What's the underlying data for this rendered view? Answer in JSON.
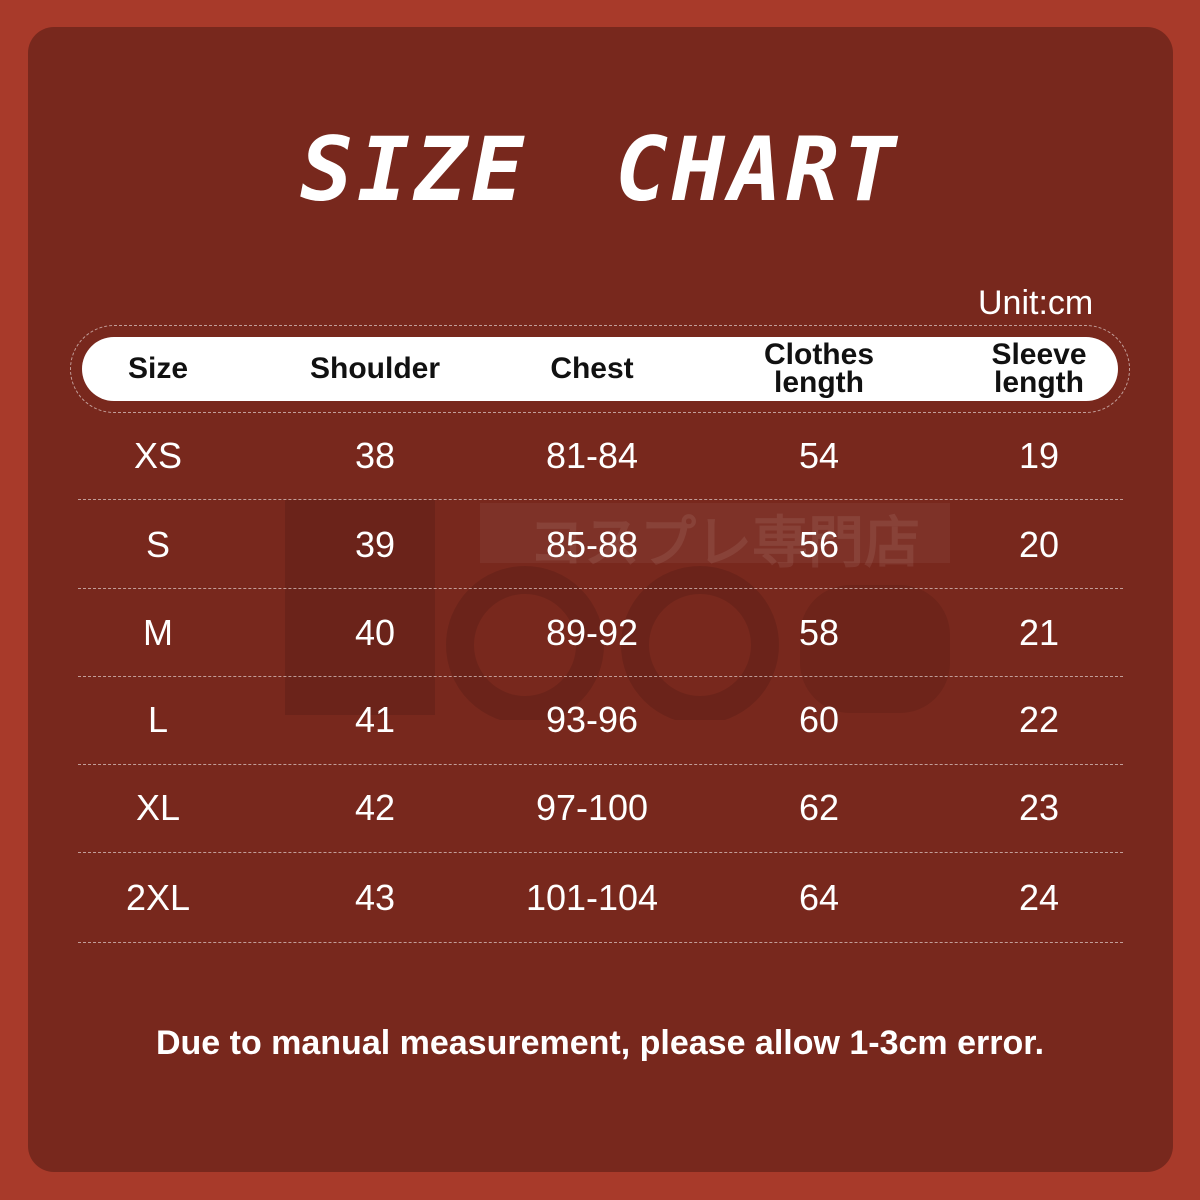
{
  "title": "SIZE CHART",
  "unit": "Unit:cm",
  "watermark": {
    "text": "コスプレ専門店",
    "logo": "Hololun"
  },
  "colors": {
    "background": "#a83a2a",
    "panel": "#78281d",
    "header": "#ffffff",
    "text": "#ffffff"
  },
  "chart_data": {
    "type": "table",
    "columns": [
      "Size",
      "Shoulder",
      "Chest",
      "Clothes length",
      "Sleeve length"
    ],
    "rows": [
      [
        "XS",
        "38",
        "81-84",
        "54",
        "19"
      ],
      [
        "S",
        "39",
        "85-88",
        "56",
        "20"
      ],
      [
        "M",
        "40",
        "89-92",
        "58",
        "21"
      ],
      [
        "L",
        "41",
        "93-96",
        "60",
        "22"
      ],
      [
        "XL",
        "42",
        "97-100",
        "62",
        "23"
      ],
      [
        "2XL",
        "43",
        "101-104",
        "64",
        "24"
      ]
    ]
  },
  "header_lines": [
    [
      "Size"
    ],
    [
      "Shoulder"
    ],
    [
      "Chest"
    ],
    [
      "Clothes",
      "length"
    ],
    [
      "Sleeve",
      "length"
    ]
  ],
  "footer": "Due to manual measurement, please allow 1-3cm error."
}
